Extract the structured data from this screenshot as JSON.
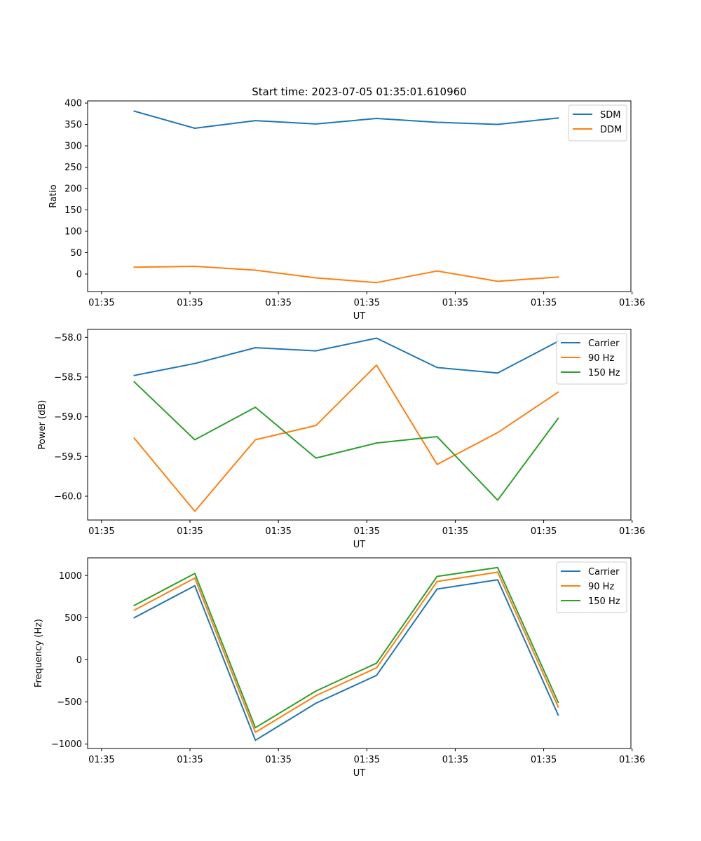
{
  "figure": {
    "title": "Start time: 2023-07-05 01:35:01.610960"
  },
  "chart_data": [
    {
      "type": "line",
      "title": "Start time: 2023-07-05 01:35:01.610960",
      "xlabel": "UT",
      "ylabel": "Ratio",
      "x": [
        1,
        2,
        3,
        4,
        5,
        6,
        7,
        8
      ],
      "xlim": [
        0.23,
        9.2
      ],
      "x_ticks": [
        0.46,
        1.92,
        3.38,
        4.84,
        6.3,
        7.76,
        9.22
      ],
      "x_tick_labels": [
        "01:35",
        "01:35",
        "01:35",
        "01:35",
        "01:35",
        "01:35",
        "01:36"
      ],
      "ylim": [
        -41,
        405
      ],
      "y_ticks": [
        0,
        50,
        100,
        150,
        200,
        250,
        300,
        350,
        400
      ],
      "y_tick_labels": [
        "0",
        "50",
        "100",
        "150",
        "200",
        "250",
        "300",
        "350",
        "400"
      ],
      "legend_position": "top-right",
      "series": [
        {
          "name": "SDM",
          "color": "#1f77b4",
          "values": [
            381,
            341,
            359,
            351,
            364,
            355,
            350,
            365
          ]
        },
        {
          "name": "DDM",
          "color": "#ff7f0e",
          "values": [
            16,
            18,
            9,
            -9,
            -20,
            7,
            -17,
            -7
          ]
        }
      ]
    },
    {
      "type": "line",
      "title": "",
      "xlabel": "UT",
      "ylabel": "Power (dB)",
      "x": [
        1,
        2,
        3,
        4,
        5,
        6,
        7,
        8
      ],
      "xlim": [
        0.23,
        9.2
      ],
      "x_ticks": [
        0.46,
        1.92,
        3.38,
        4.84,
        6.3,
        7.76,
        9.22
      ],
      "x_tick_labels": [
        "01:35",
        "01:35",
        "01:35",
        "01:35",
        "01:35",
        "01:35",
        "01:36"
      ],
      "ylim": [
        -60.3,
        -57.9
      ],
      "y_ticks": [
        -60.0,
        -59.5,
        -59.0,
        -58.5,
        -58.0
      ],
      "y_tick_labels": [
        "−60.0",
        "−59.5",
        "−59.0",
        "−58.5",
        "−58.0"
      ],
      "legend_position": "top-right",
      "series": [
        {
          "name": "Carrier",
          "color": "#1f77b4",
          "values": [
            -58.48,
            -58.33,
            -58.13,
            -58.17,
            -58.01,
            -58.38,
            -58.45,
            -58.05
          ]
        },
        {
          "name": "90 Hz",
          "color": "#ff7f0e",
          "values": [
            -59.27,
            -60.19,
            -59.29,
            -59.11,
            -58.35,
            -59.6,
            -59.2,
            -58.69
          ]
        },
        {
          "name": "150 Hz",
          "color": "#2ca02c",
          "values": [
            -58.56,
            -59.29,
            -58.88,
            -59.52,
            -59.33,
            -59.25,
            -60.05,
            -59.02
          ]
        }
      ]
    },
    {
      "type": "line",
      "title": "",
      "xlabel": "UT",
      "ylabel": "Frequency (Hz)",
      "x": [
        1,
        2,
        3,
        4,
        5,
        6,
        7,
        8
      ],
      "xlim": [
        0.23,
        9.2
      ],
      "x_ticks": [
        0.46,
        1.92,
        3.38,
        4.84,
        6.3,
        7.76,
        9.22
      ],
      "x_tick_labels": [
        "01:35",
        "01:35",
        "01:35",
        "01:35",
        "01:35",
        "01:35",
        "01:36"
      ],
      "ylim": [
        -1052,
        1210
      ],
      "y_ticks": [
        -1000,
        -500,
        0,
        500,
        1000
      ],
      "y_tick_labels": [
        "−1000",
        "−500",
        "0",
        "500",
        "1000"
      ],
      "legend_position": "top-right",
      "series": [
        {
          "name": "Carrier",
          "color": "#1f77b4",
          "values": [
            500,
            880,
            -955,
            -515,
            -185,
            840,
            950,
            -655
          ]
        },
        {
          "name": "90 Hz",
          "color": "#ff7f0e",
          "values": [
            590,
            970,
            -860,
            -425,
            -95,
            930,
            1040,
            -560
          ]
        },
        {
          "name": "150 Hz",
          "color": "#2ca02c",
          "values": [
            645,
            1025,
            -805,
            -370,
            -40,
            990,
            1095,
            -505
          ]
        }
      ]
    }
  ]
}
